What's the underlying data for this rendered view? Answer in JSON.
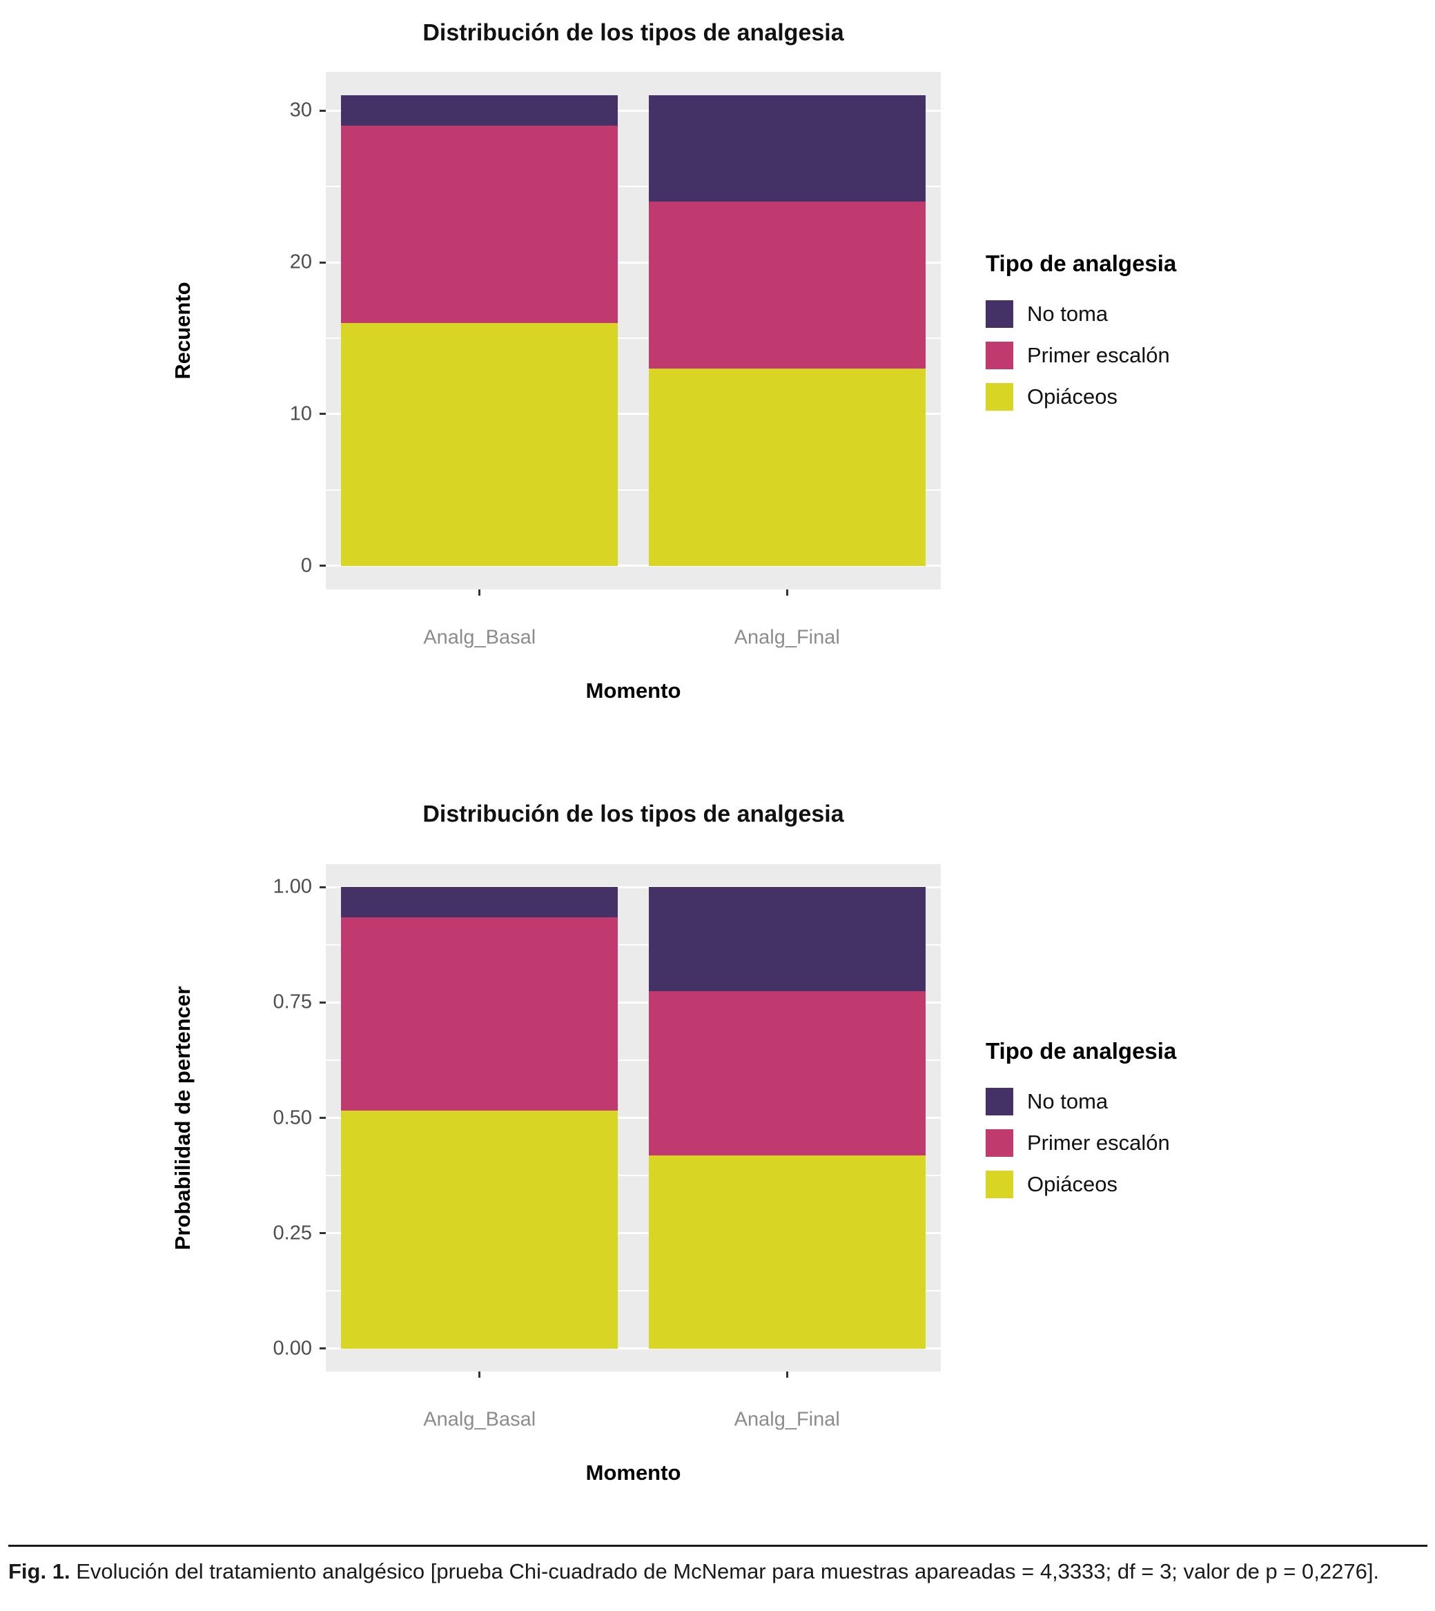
{
  "figure": {
    "caption_label": "Fig. 1.",
    "caption_text": "Evolución del tratamiento analgésico [prueba Chi-cuadrado de McNemar para muestras apareadas = 4,3333; df = 3; valor de p = 0,2276]."
  },
  "palette": {
    "panel_background": "#EBEBEB",
    "gridline": "#FFFFFF",
    "no_toma": "#443266",
    "primer_escalon": "#C0396F",
    "opiaceos": "#D8D525",
    "axis_text": "#4D4D4D",
    "category_text": "#8C8C8C"
  },
  "chart_data": [
    {
      "type": "bar",
      "stacked": true,
      "title": "Distribución de los tipos de analgesia",
      "xlabel": "Momento",
      "ylabel": "Recuento",
      "legend_title": "Tipo de analgesia",
      "legend_position": "right",
      "grid": true,
      "categories": [
        "Analg_Basal",
        "Analg_Final"
      ],
      "series": [
        {
          "name": "Opiáceos",
          "color": "#D8D525",
          "values": [
            16,
            13
          ]
        },
        {
          "name": "Primer escalón",
          "color": "#C0396F",
          "values": [
            13,
            11
          ]
        },
        {
          "name": "No toma",
          "color": "#443266",
          "values": [
            2,
            7
          ]
        }
      ],
      "ylim": [
        0,
        31
      ],
      "yticks": [
        0,
        10,
        20,
        30
      ],
      "ytick_labels": [
        "0",
        "10",
        "20",
        "30"
      ]
    },
    {
      "type": "bar",
      "stacked": true,
      "title": "Distribución de los tipos de analgesia",
      "xlabel": "Momento",
      "ylabel": "Probabilidad de pertencer",
      "legend_title": "Tipo de analgesia",
      "legend_position": "right",
      "grid": true,
      "categories": [
        "Analg_Basal",
        "Analg_Final"
      ],
      "series": [
        {
          "name": "Opiáceos",
          "color": "#D8D525",
          "values": [
            0.516,
            0.419
          ]
        },
        {
          "name": "Primer escalón",
          "color": "#C0396F",
          "values": [
            0.419,
            0.355
          ]
        },
        {
          "name": "No toma",
          "color": "#443266",
          "values": [
            0.065,
            0.226
          ]
        }
      ],
      "ylim": [
        0,
        1
      ],
      "yticks": [
        0,
        0.25,
        0.5,
        0.75,
        1.0
      ],
      "ytick_labels": [
        "0.00",
        "0.25",
        "0.50",
        "0.75",
        "1.00"
      ]
    }
  ]
}
